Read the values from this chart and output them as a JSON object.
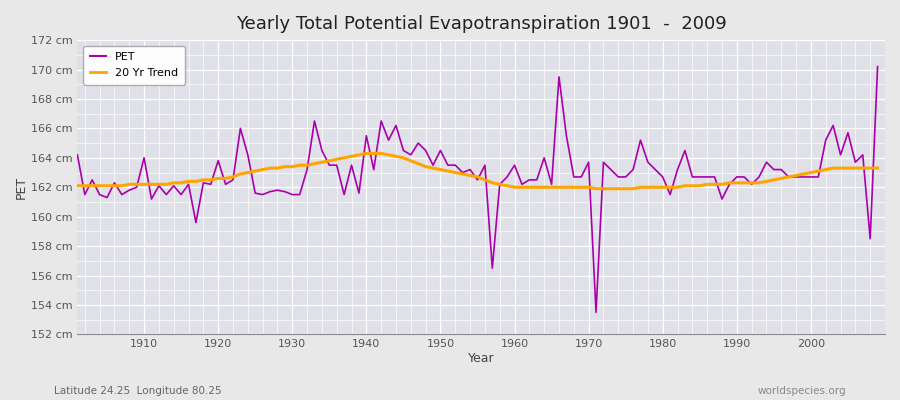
{
  "title": "Yearly Total Potential Evapotranspiration 1901  -  2009",
  "xlabel": "Year",
  "ylabel": "PET",
  "subtitle": "Latitude 24.25  Longitude 80.25",
  "credit": "worldspecies.org",
  "pet_color": "#AA00AA",
  "trend_color": "#FFA500",
  "fig_bg_color": "#E8E8E8",
  "plot_bg_color": "#E0E0E8",
  "ylim": [
    152,
    172
  ],
  "yticks": [
    152,
    154,
    156,
    158,
    160,
    162,
    164,
    166,
    168,
    170,
    172
  ],
  "xticks": [
    1910,
    1920,
    1930,
    1940,
    1950,
    1960,
    1970,
    1980,
    1990,
    2000
  ],
  "xlim": [
    1901,
    2010
  ],
  "years": [
    1901,
    1902,
    1903,
    1904,
    1905,
    1906,
    1907,
    1908,
    1909,
    1910,
    1911,
    1912,
    1913,
    1914,
    1915,
    1916,
    1917,
    1918,
    1919,
    1920,
    1921,
    1922,
    1923,
    1924,
    1925,
    1926,
    1927,
    1928,
    1929,
    1930,
    1931,
    1932,
    1933,
    1934,
    1935,
    1936,
    1937,
    1938,
    1939,
    1940,
    1941,
    1942,
    1943,
    1944,
    1945,
    1946,
    1947,
    1948,
    1949,
    1950,
    1951,
    1952,
    1953,
    1954,
    1955,
    1956,
    1957,
    1958,
    1959,
    1960,
    1961,
    1962,
    1963,
    1964,
    1965,
    1966,
    1967,
    1968,
    1969,
    1970,
    1971,
    1972,
    1973,
    1974,
    1975,
    1976,
    1977,
    1978,
    1979,
    1980,
    1981,
    1982,
    1983,
    1984,
    1985,
    1986,
    1987,
    1988,
    1989,
    1990,
    1991,
    1992,
    1993,
    1994,
    1995,
    1996,
    1997,
    1998,
    1999,
    2000,
    2001,
    2002,
    2003,
    2004,
    2005,
    2006,
    2007,
    2008,
    2009
  ],
  "pet_values": [
    164.2,
    161.5,
    162.5,
    161.5,
    161.3,
    162.3,
    161.5,
    161.8,
    162.0,
    164.0,
    161.2,
    162.1,
    161.5,
    162.1,
    161.5,
    162.2,
    159.6,
    162.3,
    162.2,
    163.8,
    162.2,
    162.5,
    166.0,
    164.2,
    161.6,
    161.5,
    161.7,
    161.8,
    161.7,
    161.5,
    161.5,
    163.2,
    166.5,
    164.5,
    163.5,
    163.5,
    161.5,
    163.5,
    161.6,
    165.5,
    163.2,
    166.5,
    165.2,
    166.2,
    164.5,
    164.2,
    165.0,
    164.5,
    163.5,
    164.5,
    163.5,
    163.5,
    163.0,
    163.2,
    162.5,
    163.5,
    156.5,
    162.2,
    162.7,
    163.5,
    162.2,
    162.5,
    162.5,
    164.0,
    162.2,
    169.5,
    165.5,
    162.7,
    162.7,
    163.7,
    153.5,
    163.7,
    163.2,
    162.7,
    162.7,
    163.2,
    165.2,
    163.7,
    163.2,
    162.7,
    161.5,
    163.2,
    164.5,
    162.7,
    162.7,
    162.7,
    162.7,
    161.2,
    162.2,
    162.7,
    162.7,
    162.2,
    162.7,
    163.7,
    163.2,
    163.2,
    162.7,
    162.7,
    162.7,
    162.7,
    162.7,
    165.2,
    166.2,
    164.2,
    165.7,
    163.7,
    164.2,
    158.5,
    170.2
  ],
  "trend_values": [
    162.1,
    162.1,
    162.1,
    162.1,
    162.1,
    162.1,
    162.1,
    162.2,
    162.2,
    162.2,
    162.2,
    162.2,
    162.2,
    162.3,
    162.3,
    162.4,
    162.4,
    162.5,
    162.5,
    162.6,
    162.6,
    162.7,
    162.9,
    163.0,
    163.1,
    163.2,
    163.3,
    163.3,
    163.4,
    163.4,
    163.5,
    163.5,
    163.6,
    163.7,
    163.8,
    163.9,
    164.0,
    164.1,
    164.2,
    164.3,
    164.3,
    164.3,
    164.2,
    164.1,
    164.0,
    163.8,
    163.6,
    163.4,
    163.3,
    163.2,
    163.1,
    163.0,
    162.9,
    162.8,
    162.7,
    162.5,
    162.3,
    162.2,
    162.1,
    162.0,
    162.0,
    162.0,
    162.0,
    162.0,
    162.0,
    162.0,
    162.0,
    162.0,
    162.0,
    162.0,
    161.9,
    161.9,
    161.9,
    161.9,
    161.9,
    161.9,
    162.0,
    162.0,
    162.0,
    162.0,
    162.0,
    162.0,
    162.1,
    162.1,
    162.1,
    162.2,
    162.2,
    162.2,
    162.3,
    162.3,
    162.3,
    162.3,
    162.3,
    162.4,
    162.5,
    162.6,
    162.7,
    162.8,
    162.9,
    163.0,
    163.1,
    163.2,
    163.3,
    163.3,
    163.3,
    163.3,
    163.3,
    163.3,
    163.3
  ]
}
